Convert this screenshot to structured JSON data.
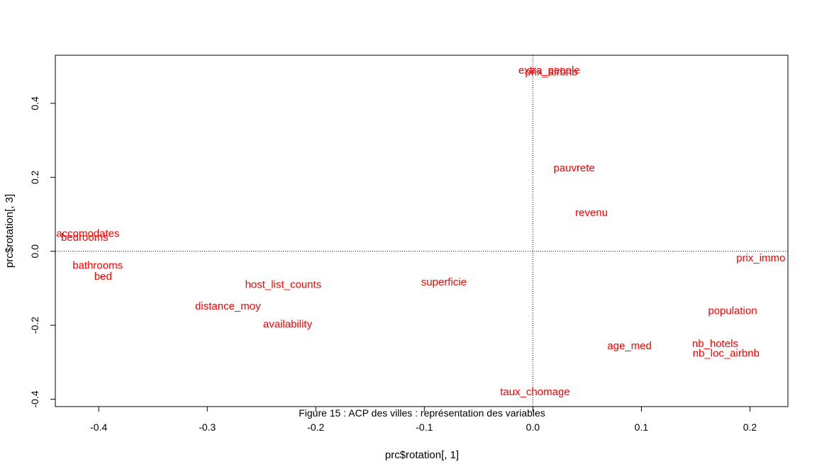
{
  "chart_data": {
    "type": "scatter",
    "title": "",
    "caption": "Figure 15 : ACP des villes : représentation des variables",
    "xlabel": "prc$rotation[, 1]",
    "ylabel": "prc$rotation[, 3]",
    "xlim": [
      -0.44,
      0.235
    ],
    "ylim": [
      -0.42,
      0.53
    ],
    "xticks": [
      -0.4,
      -0.3,
      -0.2,
      -0.1,
      0.0,
      0.1,
      0.2
    ],
    "xtick_labels": [
      "-0.4",
      "-0.3",
      "-0.2",
      "-0.1",
      "0.0",
      "0.1",
      "0.2"
    ],
    "yticks": [
      -0.4,
      -0.2,
      0.0,
      0.2,
      0.4
    ],
    "ytick_labels": [
      "-0.4",
      "-0.2",
      "0.0",
      "0.2",
      "0.4"
    ],
    "reference_lines": {
      "x": 0,
      "y": 0,
      "style": "dotted"
    },
    "grid": false,
    "label_color": "#ff0000",
    "points": [
      {
        "label": "extra_people",
        "x": 0.015,
        "y": 0.49
      },
      {
        "label": "prix_airbnb",
        "x": 0.017,
        "y": 0.485
      },
      {
        "label": "pauvrete",
        "x": 0.038,
        "y": 0.225
      },
      {
        "label": "revenu",
        "x": 0.054,
        "y": 0.105
      },
      {
        "label": "accomodates",
        "x": -0.41,
        "y": 0.048
      },
      {
        "label": "bedrooms",
        "x": -0.413,
        "y": 0.038
      },
      {
        "label": "prix_immo",
        "x": 0.21,
        "y": -0.018
      },
      {
        "label": "bathrooms",
        "x": -0.401,
        "y": -0.038
      },
      {
        "label": "bed",
        "x": -0.396,
        "y": -0.068
      },
      {
        "label": "host_list_counts",
        "x": -0.23,
        "y": -0.09
      },
      {
        "label": "superficie",
        "x": -0.082,
        "y": -0.083
      },
      {
        "label": "distance_moy",
        "x": -0.281,
        "y": -0.148
      },
      {
        "label": "availability",
        "x": -0.226,
        "y": -0.197
      },
      {
        "label": "population",
        "x": 0.184,
        "y": -0.16
      },
      {
        "label": "age_med",
        "x": 0.089,
        "y": -0.255
      },
      {
        "label": "nb_hotels",
        "x": 0.168,
        "y": -0.25
      },
      {
        "label": "nb_loc_airbnb",
        "x": 0.178,
        "y": -0.275
      },
      {
        "label": "taux_chomage",
        "x": 0.002,
        "y": -0.38
      }
    ]
  }
}
